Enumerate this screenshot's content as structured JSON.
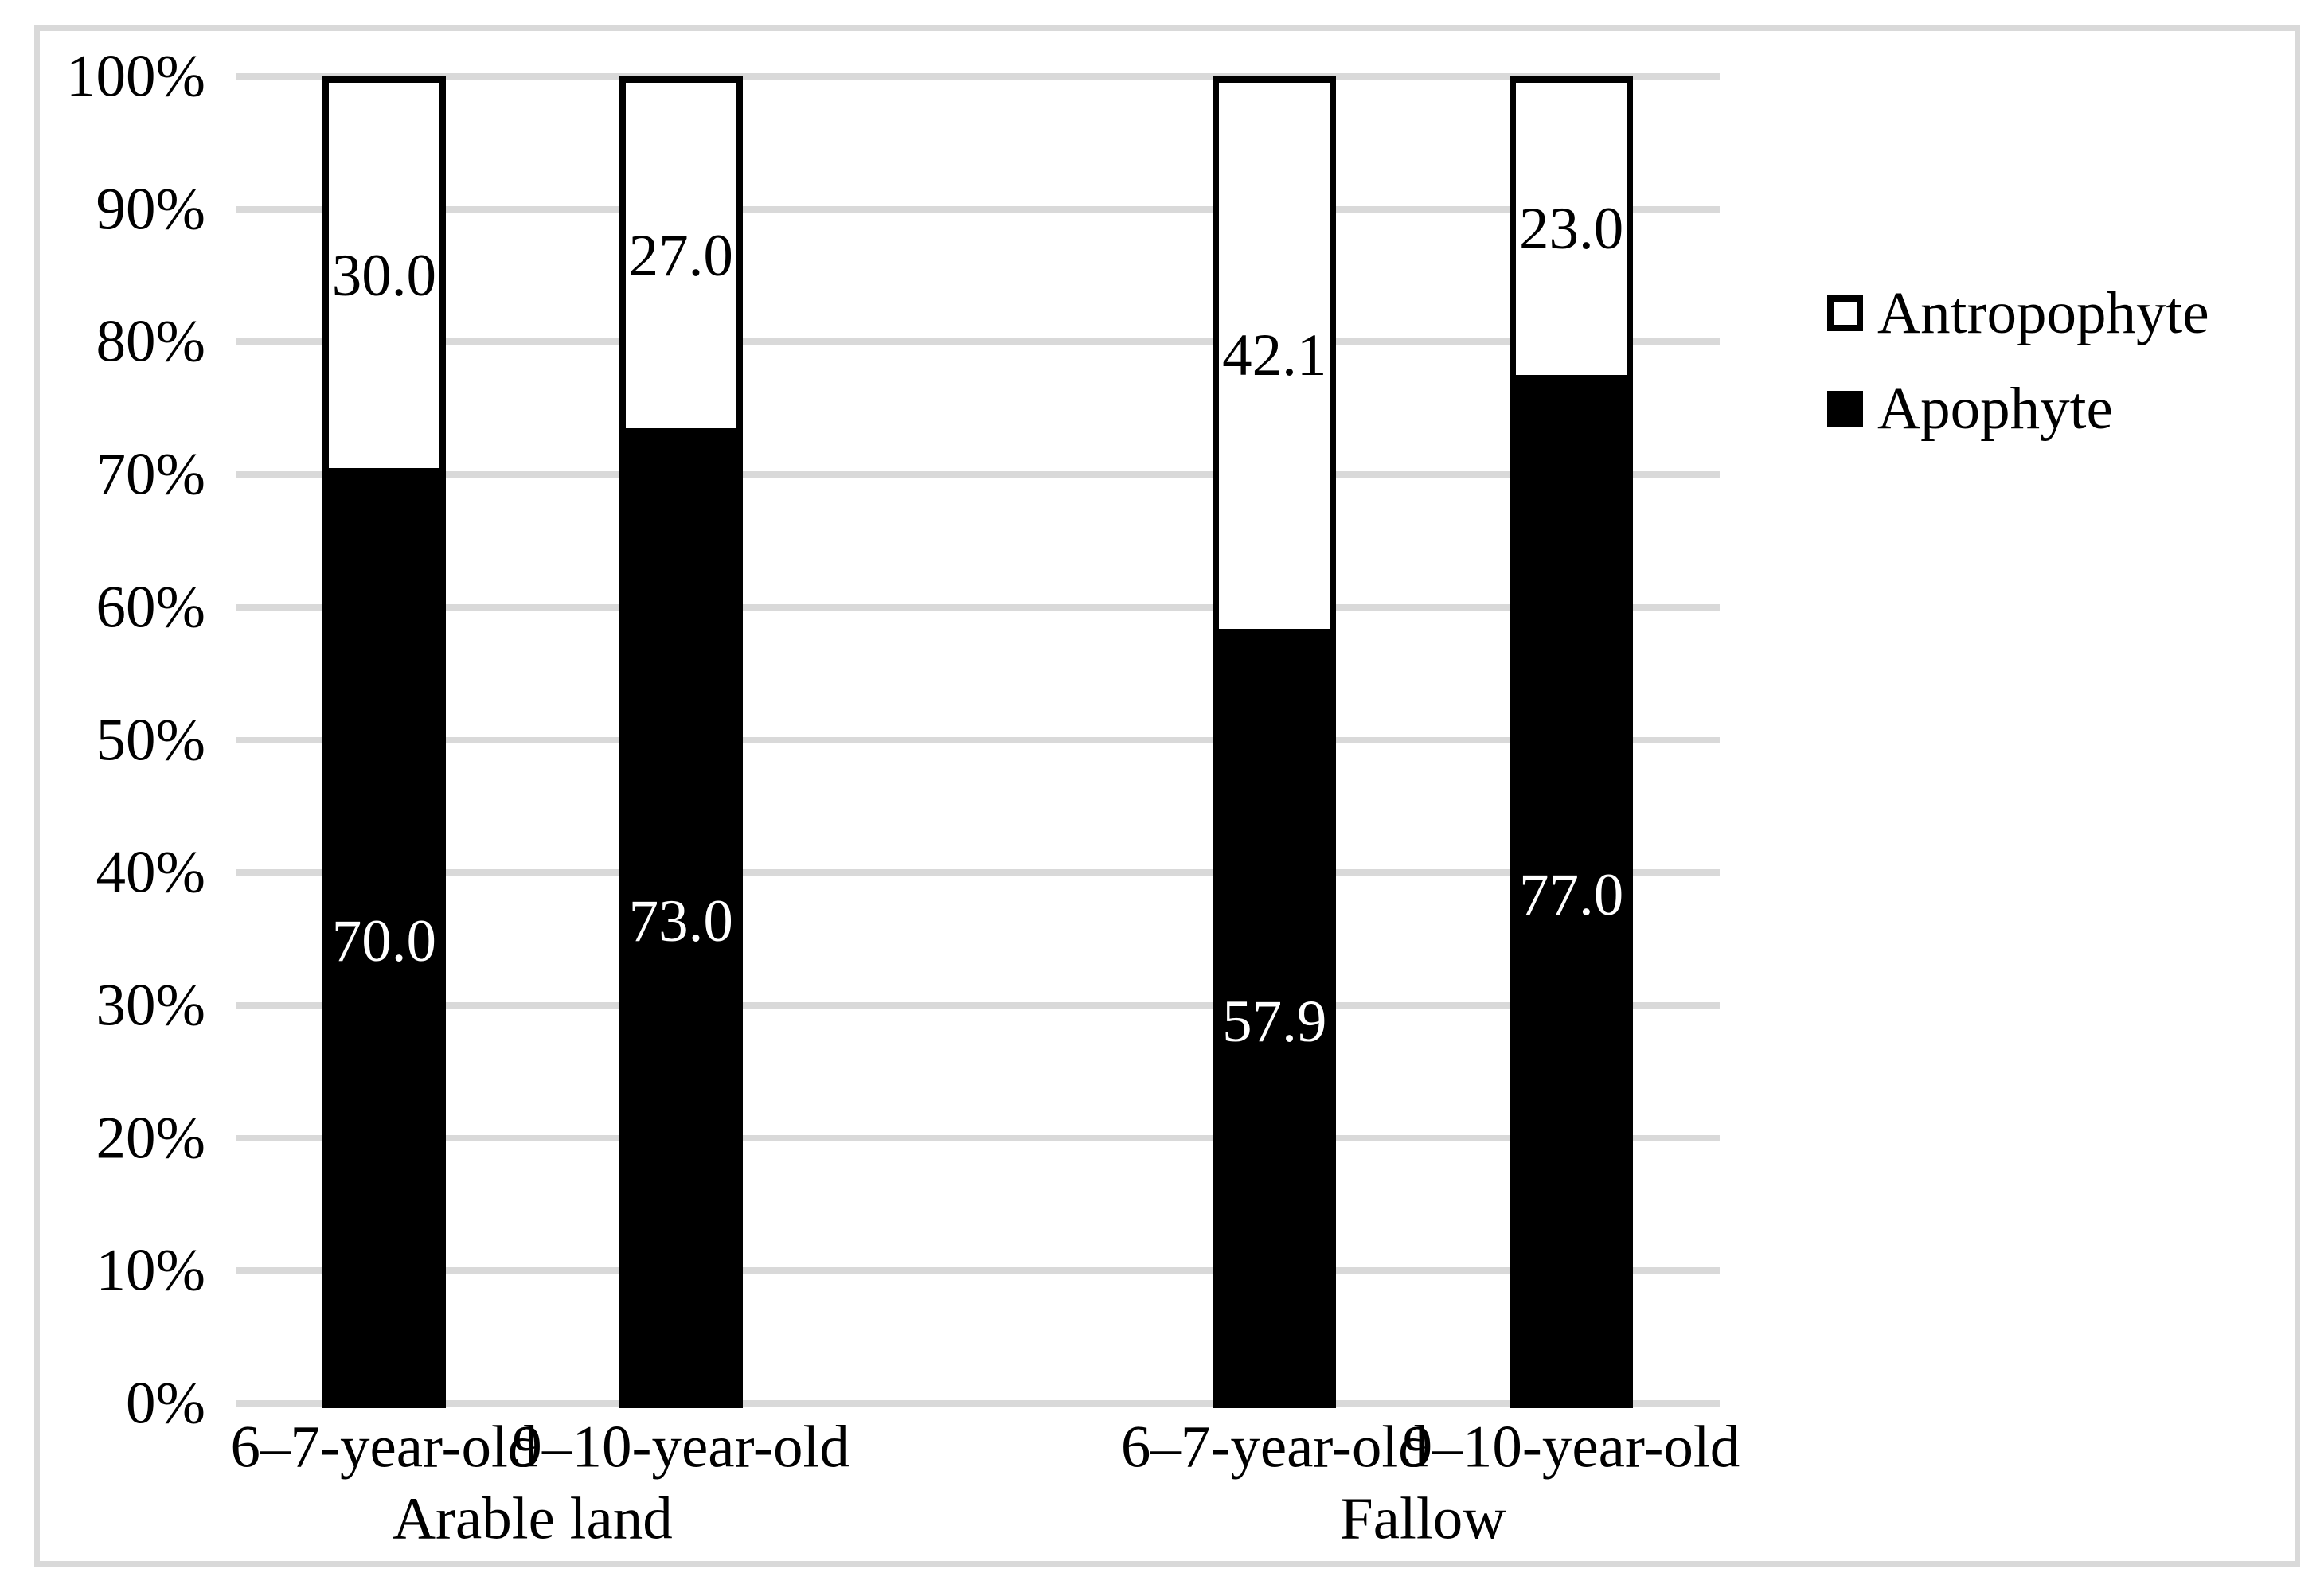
{
  "chart_data": {
    "type": "bar",
    "subtype": "stacked-100-percent",
    "title": "",
    "categories": [
      "6–7-year-old",
      "9–10-year-old",
      "6–7-year-old",
      "9–10-year-old"
    ],
    "category_groups": [
      {
        "label": "Arable land",
        "span": [
          0,
          1
        ]
      },
      {
        "label": "Fallow",
        "span": [
          2,
          3
        ]
      }
    ],
    "series": [
      {
        "name": "Antropophyte",
        "values": [
          30.0,
          27.0,
          42.1,
          23.0
        ],
        "fill": "#FFFFFF",
        "border": "#000000"
      },
      {
        "name": "Apophyte",
        "values": [
          70.0,
          73.0,
          57.9,
          77.0
        ],
        "fill": "#000000",
        "border": "#000000"
      }
    ],
    "value_label_decimals": 1,
    "y_axis": {
      "min": 0,
      "max": 100,
      "tick_labels": [
        "0%",
        "10%",
        "20%",
        "30%",
        "40%",
        "50%",
        "60%",
        "70%",
        "80%",
        "90%",
        "100%"
      ]
    },
    "grid": true,
    "gridline_color": "#D9D9D9",
    "frame_color": "#D9D9D9",
    "legend_position": "right",
    "label_color_on_dark": "#FFFFFF",
    "label_color_on_light": "#000000"
  }
}
